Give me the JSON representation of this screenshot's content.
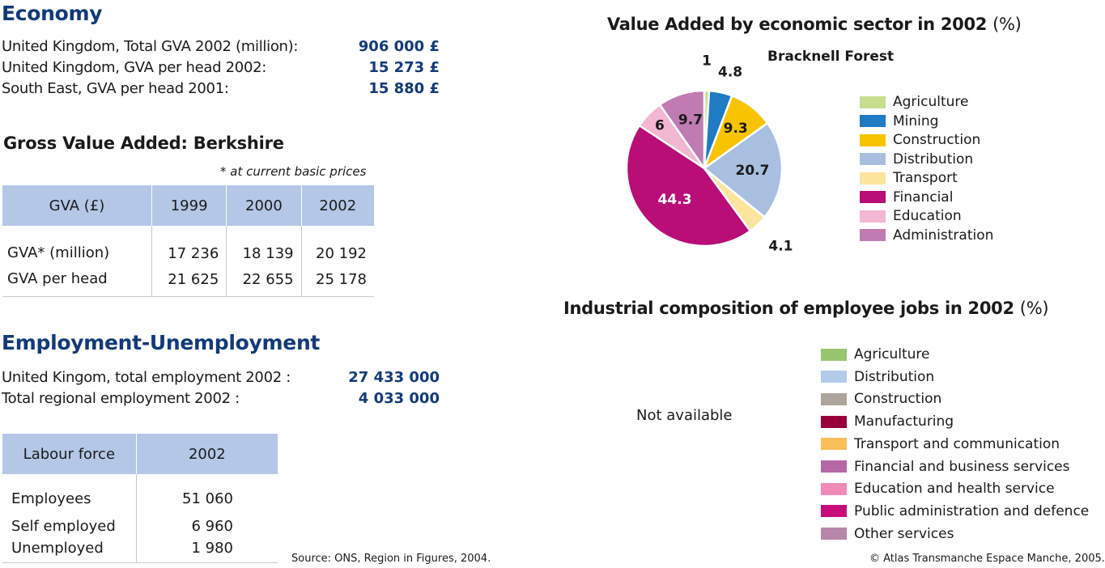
{
  "economy": {
    "title": "Economy",
    "rows": [
      {
        "label": "United Kingdom, Total GVA 2002 (million):",
        "value": "906 000 £"
      },
      {
        "label": "United Kingdom, GVA per head 2002:",
        "value": "15 273 £"
      },
      {
        "label": "South East, GVA per head 2001:",
        "value": "15 880 £"
      }
    ]
  },
  "gva": {
    "title": "Gross Value Added: Berkshire",
    "note": "* at current basic prices",
    "headers": [
      "GVA (£)",
      "1999",
      "2000",
      "2002"
    ],
    "rows": [
      {
        "label": "GVA* (million)",
        "values": [
          "17 236",
          "18 139",
          "20 192"
        ]
      },
      {
        "label": "GVA per head",
        "values": [
          "21 625",
          "22 655",
          "25 178"
        ]
      }
    ]
  },
  "employment": {
    "title": "Employment-Unemployment",
    "rows": [
      {
        "label": "United Kingom, total employment 2002 :",
        "value": "27 433 000"
      },
      {
        "label": "Total regional employment 2002 :",
        "value": "4 033 000"
      }
    ]
  },
  "labour": {
    "headers": [
      "Labour force",
      "2002"
    ],
    "rows": [
      {
        "label": "Employees",
        "value": "51 060"
      },
      {
        "label": "Self employed",
        "value": "6 960"
      },
      {
        "label": "Unemployed",
        "value": "1 980"
      }
    ]
  },
  "chart_data": [
    {
      "type": "pie",
      "title": "Value Added by economic sector in 2002",
      "title_unit": "(%)",
      "subtitle": "Bracknell Forest",
      "legend_position": "right",
      "slices": [
        {
          "name": "Agriculture",
          "value": 1,
          "label": "1",
          "color": "#c6de8e"
        },
        {
          "name": "Mining",
          "value": 4.8,
          "label": "4.8",
          "color": "#1f7bc2"
        },
        {
          "name": "Construction",
          "value": 9.3,
          "label": "9.3",
          "color": "#f8c400"
        },
        {
          "name": "Distribution",
          "value": 20.7,
          "label": "20.7",
          "color": "#a8bfe0"
        },
        {
          "name": "Transport",
          "value": 4.1,
          "label": "4.1",
          "color": "#fde59e"
        },
        {
          "name": "Financial",
          "value": 44.3,
          "label": "44.3",
          "color": "#b90d77"
        },
        {
          "name": "Education",
          "value": 6,
          "label": "6",
          "color": "#f3b6d3"
        },
        {
          "name": "Administration",
          "value": 9.7,
          "label": "9.7",
          "color": "#c07cb2"
        }
      ]
    },
    {
      "type": "pie",
      "title": "Industrial composition of employee jobs in 2002",
      "title_unit": "(%)",
      "status": "Not available",
      "legend_position": "right",
      "slices": [
        {
          "name": "Agriculture",
          "color": "#97c66e"
        },
        {
          "name": "Distribution",
          "color": "#b3cce9"
        },
        {
          "name": "Construction",
          "color": "#ada59b"
        },
        {
          "name": "Manufacturing",
          "color": "#98003a"
        },
        {
          "name": "Transport and communication",
          "color": "#fbbf5a"
        },
        {
          "name": "Financial and business services",
          "color": "#b567a6"
        },
        {
          "name": "Education and health service",
          "color": "#f08ab8"
        },
        {
          "name": "Public administration and defence",
          "color": "#c60d7a"
        },
        {
          "name": "Other services",
          "color": "#b687a9"
        }
      ]
    }
  ],
  "footer": {
    "source": "Source: ONS, Region in Figures, 2004.",
    "copyright": "© Atlas Transmanche Espace Manche, 2005."
  }
}
